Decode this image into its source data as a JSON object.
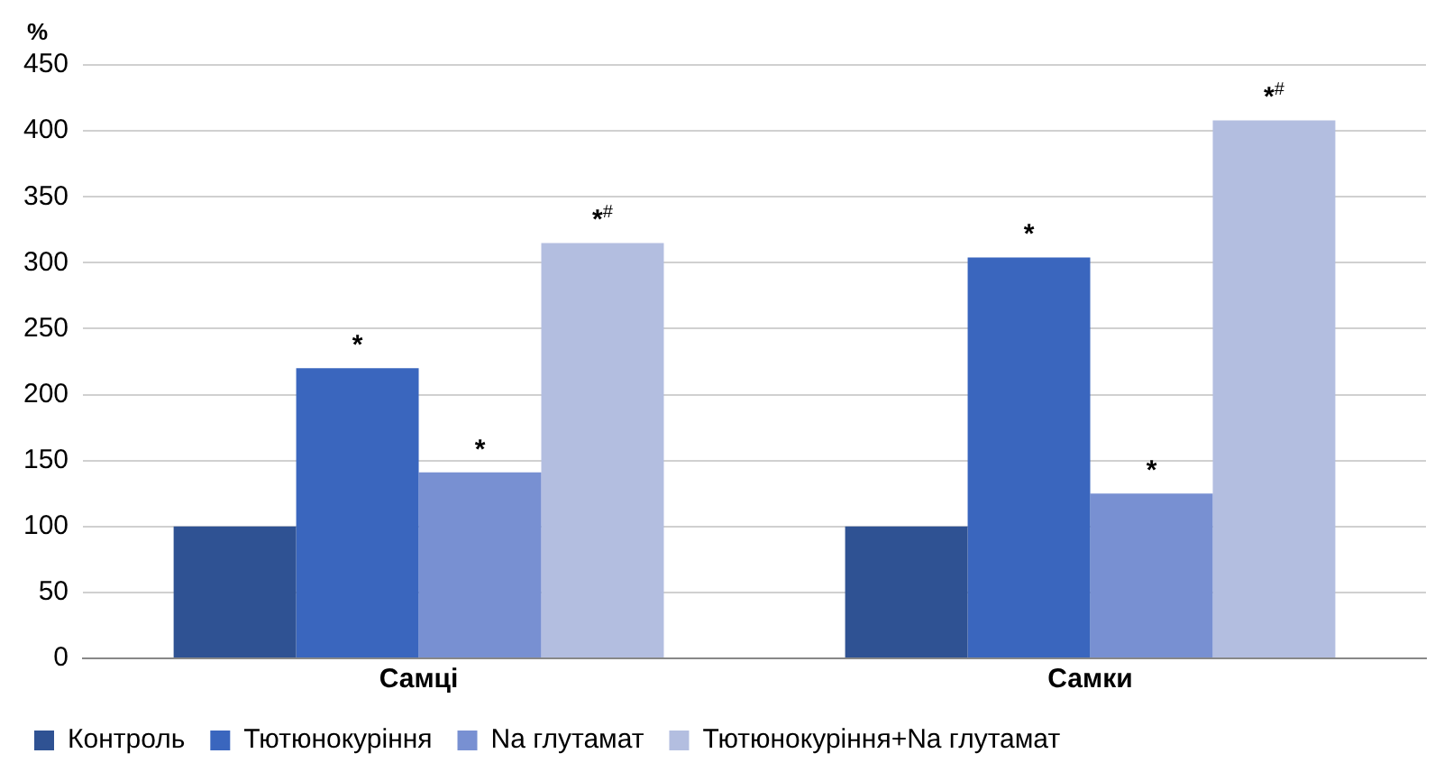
{
  "chart_data": {
    "type": "bar",
    "ylabel": "%",
    "categories": [
      "Самці",
      "Самки"
    ],
    "series": [
      {
        "name": "Контроль",
        "color": "#2f5293",
        "values": [
          100,
          100
        ]
      },
      {
        "name": "Тютюнокуріння",
        "color": "#3a66be",
        "values": [
          220,
          304
        ],
        "value_labels": [
          "*",
          "*"
        ]
      },
      {
        "name": "Na глутамат",
        "color": "#7890d2",
        "values": [
          141,
          125
        ],
        "value_labels": [
          "*",
          "*"
        ]
      },
      {
        "name": "Тютюнокуріння+Na глутамат",
        "color": "#b3bee0",
        "values": [
          315,
          408
        ],
        "value_labels": [
          "*$^{#}$",
          "*$^{#}$"
        ]
      }
    ],
    "ylim": [
      0,
      450
    ],
    "yticks": [
      0,
      50,
      100,
      150,
      200,
      250,
      300,
      350,
      400,
      450
    ],
    "grid": "y",
    "legend": "bottom"
  }
}
